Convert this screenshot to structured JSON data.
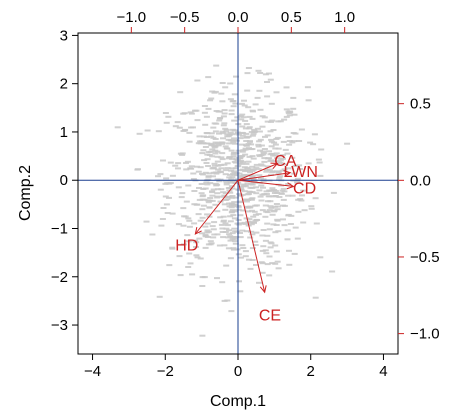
{
  "chart_data": {
    "type": "scatter",
    "subtype": "biplot",
    "title": "",
    "xlabel": "Comp.1",
    "ylabel": "Comp.2",
    "xlim": [
      -4.4,
      4.4
    ],
    "ylim": [
      -3.6,
      3.05
    ],
    "xticks": [
      -4,
      -2,
      0,
      2,
      4
    ],
    "xtick_labels": [
      "−4",
      "−2",
      "0",
      "2",
      "4"
    ],
    "yticks": [
      -3,
      -2,
      -1,
      0,
      1,
      2,
      3
    ],
    "ytick_labels": [
      "−3",
      "−2",
      "−1",
      "0",
      "1",
      "2",
      "3"
    ],
    "top_axis": {
      "lim": [
        -1.5,
        1.5
      ],
      "ticks": [
        -1.0,
        -0.5,
        0.0,
        0.5,
        1.0
      ],
      "tick_labels": [
        "−1.0",
        "−0.5",
        "0.0",
        "0.5",
        "1.0"
      ],
      "color": "#cc2222"
    },
    "right_axis": {
      "lim": [
        -1.133,
        0.961
      ],
      "ticks": [
        0.5,
        0.0,
        -0.5,
        -1.0
      ],
      "tick_labels": [
        "0.5",
        "0.0",
        "−0.5",
        "−1.0"
      ],
      "color": "#cc2222"
    },
    "reference_lines": {
      "x": 0,
      "y": 0,
      "color": "#1a3f8f"
    },
    "grid": false,
    "point_color": "#c8c8c8",
    "arrow_color": "#cc2222",
    "loadings": [
      {
        "label": "CA",
        "x": 0.37,
        "y": 0.11
      },
      {
        "label": "LWN",
        "x": 0.49,
        "y": 0.05
      },
      {
        "label": "CD",
        "x": 0.52,
        "y": -0.04
      },
      {
        "label": "HD",
        "x": -0.4,
        "y": -0.35
      },
      {
        "label": "CE",
        "x": 0.25,
        "y": -0.73
      }
    ]
  }
}
